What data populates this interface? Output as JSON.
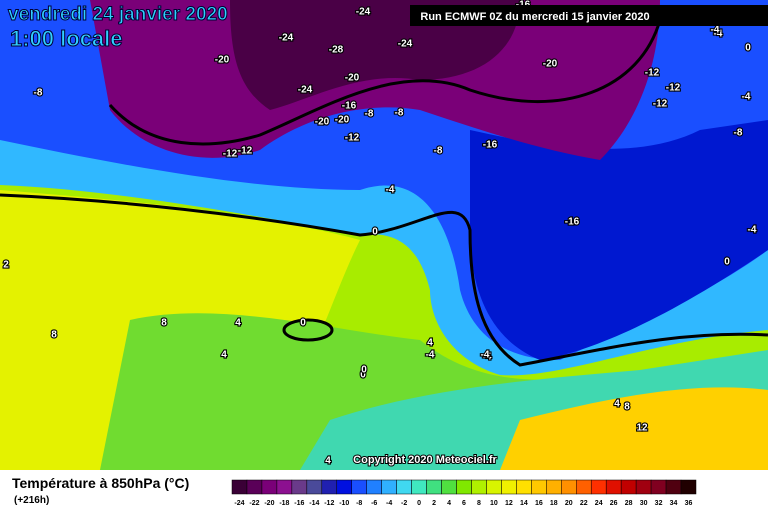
{
  "header": {
    "date": "vendredi 24 janvier 2020",
    "time": "1:00 locale",
    "run": "Run ECMWF 0Z du mercredi 15 janvier 2020"
  },
  "map": {
    "copyright": "Copyright 2020 Meteociel.fr",
    "contour_labels": [
      -24,
      -24,
      -28,
      -24,
      -20,
      -8,
      -24,
      -20,
      -16,
      -20,
      -20,
      -8,
      -8,
      -12,
      -12,
      -12,
      -8,
      -16,
      -4,
      -16,
      -12,
      -12,
      -12,
      -4,
      -8,
      -4,
      -4,
      -4,
      0,
      0,
      0,
      0,
      0,
      4,
      4,
      8,
      8,
      2,
      4,
      -4,
      4,
      8,
      12,
      4,
      -4,
      0,
      -4,
      -16,
      -20
    ]
  },
  "legend": {
    "title": "Température à 850hPa (°C)",
    "lead": "(+216h)",
    "labels": [
      -24,
      -22,
      -20,
      -18,
      -16,
      -14,
      -12,
      -10,
      -8,
      -6,
      -4,
      -2,
      0,
      2,
      4,
      6,
      8,
      10,
      12,
      14,
      16,
      18,
      20,
      22,
      24,
      26,
      28,
      30,
      32,
      34,
      36
    ],
    "colors": [
      "#3a0036",
      "#5a0058",
      "#7a0078",
      "#8c1090",
      "#6a3a8a",
      "#4a4a9a",
      "#2020b0",
      "#0010e0",
      "#1a4fff",
      "#2080ff",
      "#30b0ff",
      "#40d8f0",
      "#40e8c0",
      "#40e080",
      "#50e040",
      "#80e800",
      "#b0f000",
      "#d8f400",
      "#f0f000",
      "#ffe000",
      "#ffc800",
      "#ffb000",
      "#ff9000",
      "#ff6000",
      "#ff3000",
      "#e01000",
      "#c00000",
      "#a00010",
      "#800020",
      "#500010",
      "#200000"
    ]
  }
}
